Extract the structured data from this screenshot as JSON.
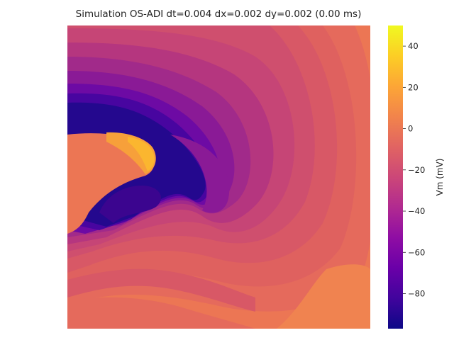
{
  "chart_data": {
    "type": "heatmap",
    "title": "Simulation OS-ADI dt=0.004 dx=0.002 dy=0.002 (0.00 ms)",
    "colorbar": {
      "label": "Vm (mV)",
      "colormap": "plasma",
      "range": [
        -97,
        50
      ],
      "ticks": [
        40,
        20,
        0,
        -20,
        -40,
        -60,
        -80
      ],
      "tick_labels": [
        "40",
        "20",
        "0",
        "−20",
        "−40",
        "−60",
        "−80"
      ]
    },
    "axes_visible": false,
    "grid": false,
    "background_vm": 3
  }
}
